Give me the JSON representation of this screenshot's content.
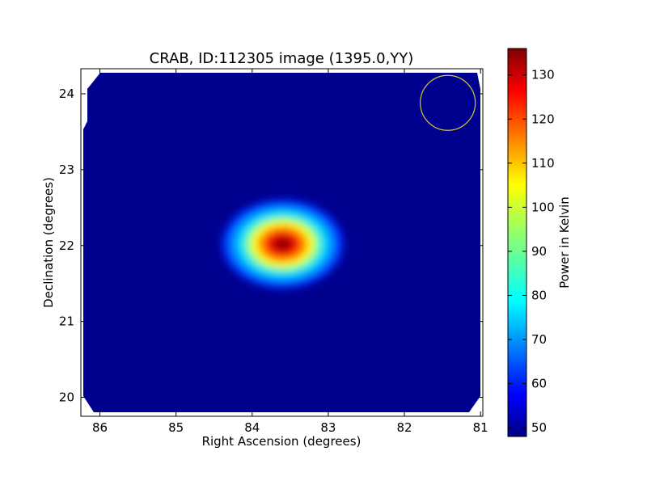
{
  "chart_data": {
    "type": "heatmap",
    "title": "CRAB, ID:112305 image (1395.0,YY)",
    "xlabel": "Right Ascension (degrees)",
    "ylabel": "Declination (degrees)",
    "xlim": [
      86.25,
      80.97
    ],
    "ylim": [
      19.75,
      24.33
    ],
    "x_ticks": [
      86,
      85,
      84,
      83,
      82,
      81
    ],
    "y_ticks": [
      20,
      21,
      22,
      23,
      24
    ],
    "colorbar": {
      "label": "Power in Kelvin",
      "range": [
        48,
        136
      ],
      "ticks": [
        50,
        60,
        70,
        80,
        90,
        100,
        110,
        120,
        130
      ],
      "colormap": "jet"
    },
    "background_level": 50,
    "source": {
      "ra_center": 83.6,
      "dec_center": 22.02,
      "peak_value": 136,
      "extent_ra": [
        84.5,
        82.9
      ],
      "extent_dec": [
        21.45,
        22.62
      ]
    },
    "beam_marker": {
      "ra": 81.43,
      "dec": 23.88,
      "color": "#d4c33f"
    },
    "colors": {
      "frame": "#000000",
      "background": "#ffffff"
    }
  }
}
